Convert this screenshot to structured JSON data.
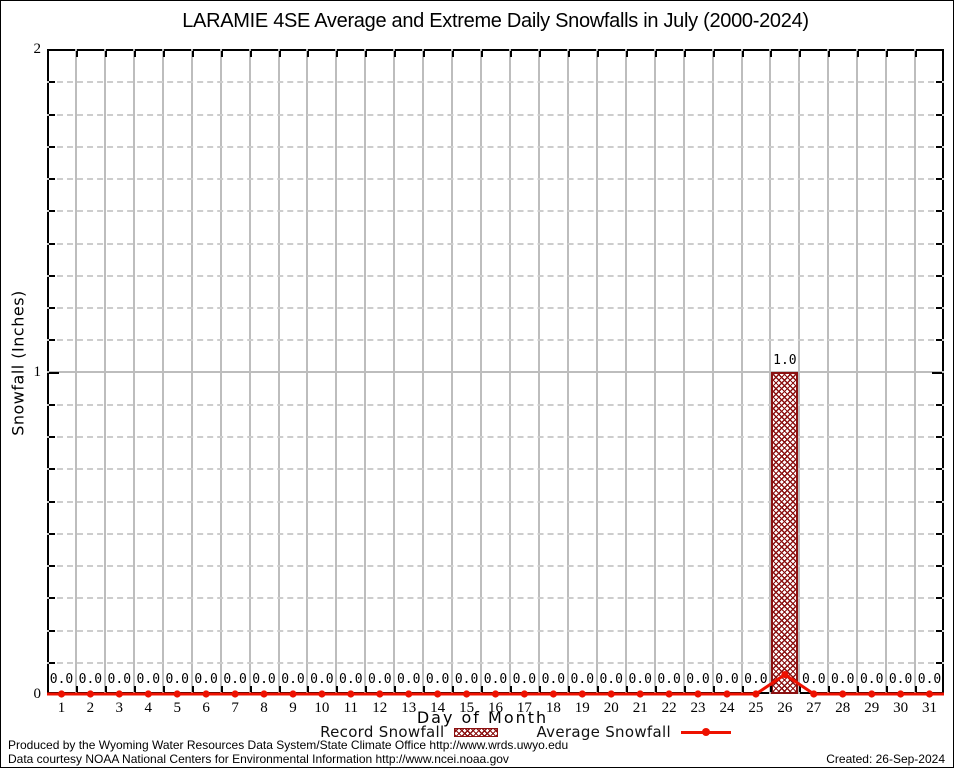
{
  "title": "LARAMIE 4SE Average and Extreme Daily Snowfalls in July (2000-2024)",
  "legend": {
    "items": [
      {
        "label": "Record Snowfall",
        "sample": "hatch-box"
      },
      {
        "label": "Average Snowfall",
        "sample": "line-marker"
      }
    ]
  },
  "footer": {
    "line1": "Produced by the Wyoming Water Resources Data System/State Climate Office http://www.wrds.uwyo.edu",
    "line2": "Data courtesy NOAA National Centers for Environmental Information http://www.ncei.noaa.gov",
    "created": "Created: 26-Sep-2024"
  },
  "colors": {
    "bar_hatch": "#8b1111",
    "bar_border": "#8b1111",
    "line": "#ee1100",
    "grid_major": "#bdbdbd",
    "grid_minor": "#cdcdcd"
  },
  "chart_data": {
    "type": "bar",
    "title": "LARAMIE 4SE Average and Extreme Daily Snowfalls in July (2000-2024)",
    "xlabel": "Day of Month",
    "ylabel": "Snowfall (Inches)",
    "x": [
      1,
      2,
      3,
      4,
      5,
      6,
      7,
      8,
      9,
      10,
      11,
      12,
      13,
      14,
      15,
      16,
      17,
      18,
      19,
      20,
      21,
      22,
      23,
      24,
      25,
      26,
      27,
      28,
      29,
      30,
      31
    ],
    "ylim": [
      0,
      2
    ],
    "y_major_ticks": [
      0,
      1,
      2
    ],
    "y_minor_step": 0.1,
    "grid": true,
    "legend_position": "bottom",
    "series": [
      {
        "name": "Record Snowfall",
        "type": "bar",
        "values": [
          0.0,
          0.0,
          0.0,
          0.0,
          0.0,
          0.0,
          0.0,
          0.0,
          0.0,
          0.0,
          0.0,
          0.0,
          0.0,
          0.0,
          0.0,
          0.0,
          0.0,
          0.0,
          0.0,
          0.0,
          0.0,
          0.0,
          0.0,
          0.0,
          0.0,
          1.0,
          0.0,
          0.0,
          0.0,
          0.0,
          0.0
        ]
      },
      {
        "name": "Average Snowfall",
        "type": "line",
        "values": [
          0,
          0,
          0,
          0,
          0,
          0,
          0,
          0,
          0,
          0,
          0,
          0,
          0,
          0,
          0,
          0,
          0,
          0,
          0,
          0,
          0,
          0,
          0,
          0,
          0,
          0.06,
          0,
          0,
          0,
          0,
          0
        ]
      }
    ],
    "value_labels": [
      "0.0",
      "0.0",
      "0.0",
      "0.0",
      "0.0",
      "0.0",
      "0.0",
      "0.0",
      "0.0",
      "0.0",
      "0.0",
      "0.0",
      "0.0",
      "0.0",
      "0.0",
      "0.0",
      "0.0",
      "0.0",
      "0.0",
      "0.0",
      "0.0",
      "0.0",
      "0.0",
      "0.0",
      "0.0",
      "1.0",
      "0.0",
      "0.0",
      "0.0",
      "0.0",
      "0.0"
    ]
  }
}
